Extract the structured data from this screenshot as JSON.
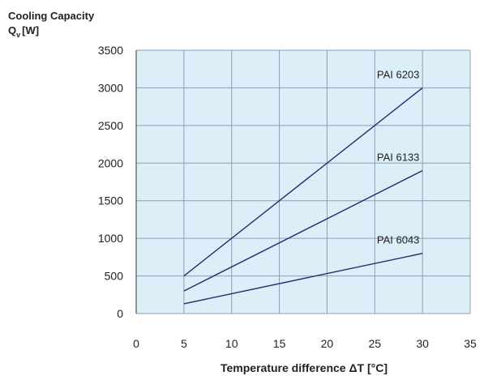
{
  "chart_data": {
    "type": "line",
    "ylabel_line1": "Cooling Capacity",
    "ylabel_symbol": "Q",
    "ylabel_subscript": "v",
    "ylabel_unit": "[W]",
    "xlabel": "Temperature difference ΔT [°C]",
    "xlim": [
      0,
      35
    ],
    "ylim": [
      0,
      3500
    ],
    "xticks": [
      0,
      5,
      10,
      15,
      20,
      25,
      30,
      35
    ],
    "yticks": [
      0,
      500,
      1000,
      1500,
      2000,
      2500,
      3000,
      3500
    ],
    "grid": true,
    "colors": {
      "plot_bg": "#dceef7",
      "grid": "#8aa0b4",
      "line": "#1f2e6e"
    },
    "series": [
      {
        "name": "PAI 6203",
        "x": [
          5,
          30
        ],
        "y": [
          500,
          3000
        ]
      },
      {
        "name": "PAI 6133",
        "x": [
          5,
          30
        ],
        "y": [
          300,
          1900
        ]
      },
      {
        "name": "PAI 6043",
        "x": [
          5,
          30
        ],
        "y": [
          130,
          800
        ]
      }
    ]
  }
}
